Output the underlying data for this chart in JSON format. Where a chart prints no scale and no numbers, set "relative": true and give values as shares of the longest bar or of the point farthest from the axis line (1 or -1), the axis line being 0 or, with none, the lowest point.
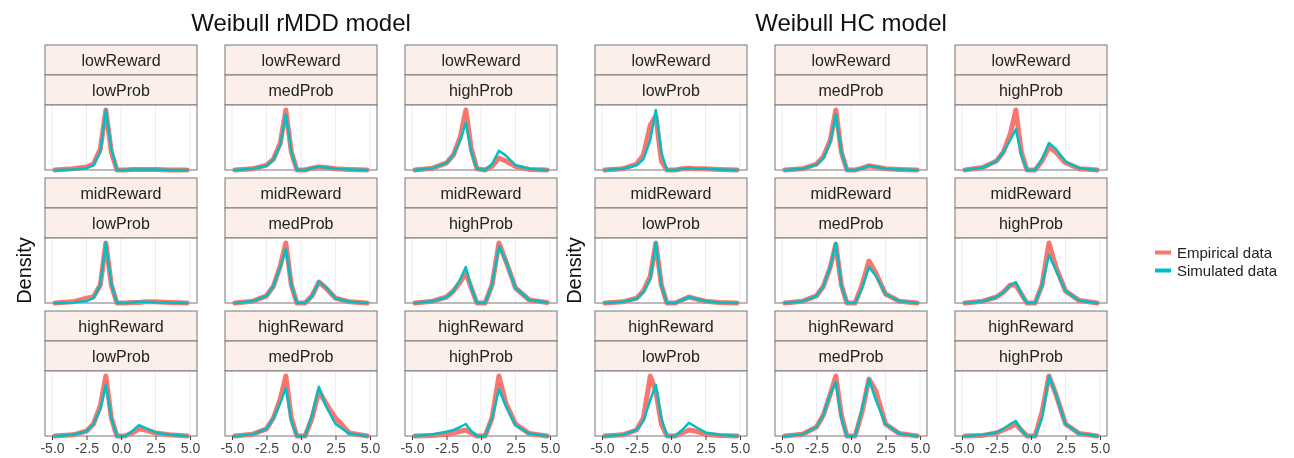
{
  "chart_data": [
    {
      "type": "line",
      "relative": true,
      "title": "lowReward",
      "subtitle": "lowProb",
      "x": [
        -4.8,
        -3.5,
        -2.5,
        -2,
        -1.5,
        -1.1,
        -0.7,
        -0.3,
        0.3,
        0.8,
        1.3,
        1.8,
        2.5,
        3.5,
        4.8
      ],
      "xlim": [
        -5,
        5
      ],
      "xticks": [
        -5,
        -2.5,
        0,
        2.5,
        5
      ],
      "tick_labels": false,
      "grid": true,
      "series": [
        {
          "color": "#f8766d",
          "values": [
            0,
            0.02,
            0.05,
            0.1,
            0.35,
            1,
            0.3,
            0,
            0,
            0.01,
            0.01,
            0.01,
            0.01,
            0,
            0
          ]
        },
        {
          "color": "#00bfc4",
          "values": [
            0,
            0.01,
            0.03,
            0.08,
            0.3,
            1,
            0.35,
            0,
            0,
            0.01,
            0.01,
            0.01,
            0.01,
            0,
            0
          ]
        }
      ]
    },
    {
      "type": "line",
      "relative": true,
      "title": "lowReward",
      "subtitle": "medProb",
      "annotations": [
        "Weibull rMDD model"
      ],
      "x": [
        -4.8,
        -3.5,
        -2.5,
        -2,
        -1.5,
        -1.1,
        -0.7,
        -0.3,
        0.3,
        0.8,
        1.3,
        1.8,
        2.5,
        3.5,
        4.8
      ],
      "xlim": [
        -5,
        5
      ],
      "xticks": [
        -5,
        -2.5,
        0,
        2.5,
        5
      ],
      "tick_labels": false,
      "grid": true,
      "series": [
        {
          "color": "#f8766d",
          "values": [
            0,
            0.02,
            0.08,
            0.18,
            0.45,
            1,
            0.3,
            0,
            0,
            0.03,
            0.05,
            0.04,
            0.02,
            0.01,
            0
          ]
        },
        {
          "color": "#00bfc4",
          "values": [
            0,
            0.02,
            0.07,
            0.17,
            0.42,
            0.93,
            0.3,
            0,
            0,
            0.03,
            0.06,
            0.04,
            0.02,
            0.01,
            0
          ]
        }
      ]
    },
    {
      "type": "line",
      "relative": true,
      "title": "lowReward",
      "subtitle": "highProb",
      "x": [
        -4.8,
        -3.5,
        -2.5,
        -2,
        -1.5,
        -1.1,
        -0.7,
        -0.3,
        0.3,
        0.8,
        1.3,
        1.8,
        2.5,
        3.5,
        4.8
      ],
      "xlim": [
        -5,
        5
      ],
      "xticks": [
        -5,
        -2.5,
        0,
        2.5,
        5
      ],
      "tick_labels": false,
      "grid": true,
      "series": [
        {
          "color": "#f8766d",
          "values": [
            0,
            0.03,
            0.12,
            0.25,
            0.55,
            1,
            0.35,
            0.02,
            0,
            0.06,
            0.2,
            0.15,
            0.06,
            0.01,
            0
          ]
        },
        {
          "color": "#00bfc4",
          "values": [
            0,
            0.03,
            0.12,
            0.25,
            0.5,
            0.78,
            0.3,
            0.02,
            0,
            0.1,
            0.32,
            0.24,
            0.08,
            0.02,
            0
          ]
        }
      ]
    },
    {
      "type": "line",
      "relative": true,
      "title": "midReward",
      "subtitle": "lowProb",
      "ylabel": "Density",
      "x": [
        -4.8,
        -3.5,
        -2.5,
        -2,
        -1.5,
        -1.1,
        -0.7,
        -0.3,
        0.3,
        0.8,
        1.3,
        1.8,
        2.5,
        3.5,
        4.8
      ],
      "xlim": [
        -5,
        5
      ],
      "xticks": [
        -5,
        -2.5,
        0,
        2.5,
        5
      ],
      "tick_labels": false,
      "grid": true,
      "series": [
        {
          "color": "#f8766d",
          "values": [
            0,
            0.02,
            0.08,
            0.1,
            0.3,
            1,
            0.3,
            0,
            0,
            0.01,
            0.01,
            0.02,
            0.02,
            0.01,
            0
          ]
        },
        {
          "color": "#00bfc4",
          "values": [
            0,
            0.01,
            0.03,
            0.08,
            0.3,
            1,
            0.32,
            0,
            0,
            0.01,
            0.02,
            0.02,
            0.01,
            0.01,
            0
          ]
        }
      ]
    },
    {
      "type": "line",
      "relative": true,
      "title": "midReward",
      "subtitle": "medProb",
      "x": [
        -4.8,
        -3.5,
        -2.5,
        -2,
        -1.5,
        -1.1,
        -0.7,
        -0.3,
        0.3,
        0.8,
        1.3,
        1.8,
        2.5,
        3.5,
        4.8
      ],
      "xlim": [
        -5,
        5
      ],
      "xticks": [
        -5,
        -2.5,
        0,
        2.5,
        5
      ],
      "tick_labels": false,
      "grid": true,
      "series": [
        {
          "color": "#f8766d",
          "values": [
            0,
            0.03,
            0.12,
            0.28,
            0.62,
            1,
            0.3,
            0,
            0,
            0.12,
            0.35,
            0.25,
            0.08,
            0.02,
            0
          ]
        },
        {
          "color": "#00bfc4",
          "values": [
            0,
            0.03,
            0.12,
            0.28,
            0.6,
            0.9,
            0.3,
            0,
            0,
            0.12,
            0.36,
            0.26,
            0.08,
            0.02,
            0
          ]
        }
      ]
    },
    {
      "type": "line",
      "relative": true,
      "title": "midReward",
      "subtitle": "highProb",
      "x": [
        -4.8,
        -3.5,
        -2.5,
        -2,
        -1.5,
        -1.1,
        -0.7,
        -0.3,
        0.3,
        0.8,
        1.3,
        1.8,
        2.5,
        3.5,
        4.8
      ],
      "xlim": [
        -5,
        5
      ],
      "xticks": [
        -5,
        -2.5,
        0,
        2.5,
        5
      ],
      "tick_labels": false,
      "grid": true,
      "series": [
        {
          "color": "#f8766d",
          "values": [
            0,
            0.03,
            0.1,
            0.2,
            0.35,
            0.5,
            0.25,
            0,
            0,
            0.3,
            1,
            0.7,
            0.25,
            0.05,
            0.01
          ]
        },
        {
          "color": "#00bfc4",
          "values": [
            0,
            0.03,
            0.1,
            0.2,
            0.4,
            0.6,
            0.25,
            0,
            0,
            0.3,
            0.95,
            0.7,
            0.25,
            0.05,
            0.01
          ]
        }
      ]
    },
    {
      "type": "line",
      "relative": true,
      "title": "highReward",
      "subtitle": "lowProb",
      "x": [
        -4.8,
        -3.5,
        -2.5,
        -2,
        -1.5,
        -1.1,
        -0.7,
        -0.3,
        0.3,
        0.8,
        1.3,
        1.8,
        2.5,
        3.5,
        4.8
      ],
      "xlim": [
        -5,
        5
      ],
      "xticks": [
        {
          "value": -5,
          "label": "-5.0"
        },
        {
          "value": -2.5,
          "label": "-2.5"
        },
        {
          "value": 0,
          "label": "0.0"
        },
        {
          "value": 2.5,
          "label": "2.5"
        },
        {
          "value": 5,
          "label": "5.0"
        }
      ],
      "tick_labels": "x",
      "grid": true,
      "series": [
        {
          "color": "#f8766d",
          "values": [
            0,
            0.02,
            0.08,
            0.2,
            0.5,
            1,
            0.3,
            0,
            0,
            0.05,
            0.12,
            0.1,
            0.05,
            0.02,
            0
          ]
        },
        {
          "color": "#00bfc4",
          "values": [
            0,
            0.02,
            0.08,
            0.2,
            0.45,
            0.85,
            0.3,
            0,
            0,
            0.08,
            0.18,
            0.13,
            0.06,
            0.02,
            0
          ]
        }
      ]
    },
    {
      "type": "line",
      "relative": true,
      "title": "highReward",
      "subtitle": "medProb",
      "x": [
        -4.8,
        -3.5,
        -2.5,
        -2,
        -1.5,
        -1.1,
        -0.7,
        -0.3,
        0.3,
        0.8,
        1.3,
        1.8,
        2.5,
        3.5,
        4.8
      ],
      "xlim": [
        -5,
        5
      ],
      "xticks": [
        {
          "value": -5,
          "label": "-5.0"
        },
        {
          "value": -2.5,
          "label": "-2.5"
        },
        {
          "value": 0,
          "label": "0.0"
        },
        {
          "value": 2.5,
          "label": "2.5"
        },
        {
          "value": 5,
          "label": "5.0"
        }
      ],
      "tick_labels": "x",
      "grid": true,
      "series": [
        {
          "color": "#f8766d",
          "values": [
            0,
            0.03,
            0.12,
            0.3,
            0.62,
            1,
            0.3,
            0,
            0,
            0.3,
            0.75,
            0.55,
            0.3,
            0.05,
            0
          ]
        },
        {
          "color": "#00bfc4",
          "values": [
            0,
            0.03,
            0.12,
            0.3,
            0.55,
            0.8,
            0.25,
            0,
            0,
            0.35,
            0.82,
            0.5,
            0.2,
            0.04,
            0
          ]
        }
      ]
    },
    {
      "type": "line",
      "relative": true,
      "title": "highReward",
      "subtitle": "highProb",
      "x": [
        -4.8,
        -3.5,
        -2.5,
        -2,
        -1.5,
        -1.1,
        -0.7,
        -0.3,
        0.3,
        0.8,
        1.3,
        1.8,
        2.5,
        3.5,
        4.8
      ],
      "xlim": [
        -5,
        5
      ],
      "xticks": [
        {
          "value": -5,
          "label": "-5.0"
        },
        {
          "value": -2.5,
          "label": "-2.5"
        },
        {
          "value": 0,
          "label": "0.0"
        },
        {
          "value": 2.5,
          "label": "2.5"
        },
        {
          "value": 5,
          "label": "5.0"
        }
      ],
      "tick_labels": "x",
      "grid": true,
      "series": [
        {
          "color": "#f8766d",
          "values": [
            0,
            0.01,
            0.03,
            0.05,
            0.08,
            0.1,
            0.05,
            0,
            0,
            0.3,
            1,
            0.55,
            0.2,
            0.04,
            0
          ]
        },
        {
          "color": "#00bfc4",
          "values": [
            0,
            0.03,
            0.07,
            0.1,
            0.15,
            0.2,
            0.08,
            0,
            0,
            0.3,
            0.78,
            0.5,
            0.18,
            0.04,
            0
          ]
        }
      ]
    },
    {
      "type": "line",
      "relative": true,
      "title": "lowReward",
      "subtitle": "lowProb",
      "x": [
        -4.8,
        -3.5,
        -2.5,
        -2,
        -1.5,
        -1.1,
        -0.7,
        -0.3,
        0.3,
        0.8,
        1.3,
        1.8,
        2.5,
        3.5,
        4.8
      ],
      "xlim": [
        -5,
        5
      ],
      "xticks": [
        -5,
        -2.5,
        0,
        2.5,
        5
      ],
      "tick_labels": false,
      "grid": true,
      "series": [
        {
          "color": "#f8766d",
          "values": [
            0,
            0.02,
            0.1,
            0.25,
            0.75,
            0.9,
            0.15,
            0,
            0,
            0.02,
            0.03,
            0.02,
            0.02,
            0.01,
            0
          ]
        },
        {
          "color": "#00bfc4",
          "values": [
            0,
            0.02,
            0.08,
            0.18,
            0.5,
            1,
            0.3,
            0,
            0,
            0.02,
            0.03,
            0.02,
            0.02,
            0.01,
            0
          ]
        }
      ]
    },
    {
      "type": "line",
      "relative": true,
      "title": "lowReward",
      "subtitle": "medProb",
      "annotations": [
        "Weibull HC model"
      ],
      "x": [
        -4.8,
        -3.5,
        -2.5,
        -2,
        -1.5,
        -1.1,
        -0.7,
        -0.3,
        0.3,
        0.8,
        1.3,
        1.8,
        2.5,
        3.5,
        4.8
      ],
      "xlim": [
        -5,
        5
      ],
      "xticks": [
        -5,
        -2.5,
        0,
        2.5,
        5
      ],
      "tick_labels": false,
      "grid": true,
      "series": [
        {
          "color": "#f8766d",
          "values": [
            0,
            0.02,
            0.1,
            0.22,
            0.5,
            1,
            0.3,
            0,
            0,
            0.03,
            0.07,
            0.05,
            0.02,
            0.01,
            0
          ]
        },
        {
          "color": "#00bfc4",
          "values": [
            0,
            0.02,
            0.09,
            0.2,
            0.47,
            0.93,
            0.3,
            0,
            0,
            0.03,
            0.07,
            0.05,
            0.02,
            0.01,
            0
          ]
        }
      ]
    },
    {
      "type": "line",
      "relative": true,
      "title": "lowReward",
      "subtitle": "highProb",
      "x": [
        -4.8,
        -3.5,
        -2.5,
        -2,
        -1.5,
        -1.1,
        -0.7,
        -0.3,
        0.3,
        0.8,
        1.3,
        1.8,
        2.5,
        3.5,
        4.8
      ],
      "xlim": [
        -5,
        5
      ],
      "xticks": [
        -5,
        -2.5,
        0,
        2.5,
        5
      ],
      "tick_labels": false,
      "grid": true,
      "series": [
        {
          "color": "#f8766d",
          "values": [
            0,
            0.04,
            0.15,
            0.3,
            0.6,
            1,
            0.3,
            0,
            0,
            0.15,
            0.38,
            0.3,
            0.12,
            0.02,
            0
          ]
        },
        {
          "color": "#00bfc4",
          "values": [
            0,
            0.04,
            0.15,
            0.3,
            0.5,
            0.68,
            0.25,
            0,
            0,
            0.18,
            0.45,
            0.35,
            0.14,
            0.03,
            0
          ]
        }
      ]
    },
    {
      "type": "line",
      "relative": true,
      "title": "midReward",
      "subtitle": "lowProb",
      "ylabel": "Density",
      "x": [
        -4.8,
        -3.5,
        -2.5,
        -2,
        -1.5,
        -1.1,
        -0.7,
        -0.3,
        0.3,
        0.8,
        1.3,
        1.8,
        2.5,
        3.5,
        4.8
      ],
      "xlim": [
        -5,
        5
      ],
      "xticks": [
        -5,
        -2.5,
        0,
        2.5,
        5
      ],
      "tick_labels": false,
      "grid": true,
      "series": [
        {
          "color": "#f8766d",
          "values": [
            0,
            0.02,
            0.08,
            0.2,
            0.45,
            1,
            0.3,
            0,
            0,
            0.05,
            0.1,
            0.07,
            0.03,
            0.01,
            0
          ]
        },
        {
          "color": "#00bfc4",
          "values": [
            0,
            0.02,
            0.07,
            0.18,
            0.4,
            1,
            0.3,
            0,
            0,
            0.05,
            0.1,
            0.07,
            0.03,
            0.01,
            0
          ]
        }
      ]
    },
    {
      "type": "line",
      "relative": true,
      "title": "midReward",
      "subtitle": "medProb",
      "x": [
        -4.8,
        -3.5,
        -2.5,
        -2,
        -1.5,
        -1.1,
        -0.7,
        -0.3,
        0.3,
        0.8,
        1.3,
        1.8,
        2.5,
        3.5,
        4.8
      ],
      "xlim": [
        -5,
        5
      ],
      "xticks": [
        -5,
        -2.5,
        0,
        2.5,
        5
      ],
      "tick_labels": false,
      "grid": true,
      "series": [
        {
          "color": "#f8766d",
          "values": [
            0,
            0.03,
            0.12,
            0.28,
            0.6,
            0.98,
            0.3,
            0,
            0,
            0.3,
            0.7,
            0.5,
            0.15,
            0.03,
            0
          ]
        },
        {
          "color": "#00bfc4",
          "values": [
            0,
            0.03,
            0.12,
            0.28,
            0.6,
            1,
            0.3,
            0,
            0,
            0.25,
            0.6,
            0.45,
            0.15,
            0.03,
            0
          ]
        }
      ]
    },
    {
      "type": "line",
      "relative": true,
      "title": "midReward",
      "subtitle": "highProb",
      "legend": "right",
      "x": [
        -4.8,
        -3.5,
        -2.5,
        -2,
        -1.5,
        -1.1,
        -0.7,
        -0.3,
        0.3,
        0.8,
        1.3,
        1.8,
        2.5,
        3.5,
        4.8
      ],
      "xlim": [
        -5,
        5
      ],
      "xticks": [
        -5,
        -2.5,
        0,
        2.5,
        5
      ],
      "tick_labels": false,
      "grid": true,
      "series": [
        {
          "name": "Empirical data",
          "color": "#f8766d",
          "values": [
            0,
            0.03,
            0.1,
            0.18,
            0.3,
            0.3,
            0.15,
            0,
            0,
            0.3,
            1,
            0.6,
            0.2,
            0.04,
            0
          ]
        },
        {
          "name": "Simulated data",
          "color": "#00bfc4",
          "values": [
            0,
            0.03,
            0.1,
            0.18,
            0.3,
            0.35,
            0.15,
            0,
            0,
            0.3,
            0.8,
            0.55,
            0.2,
            0.04,
            0
          ]
        }
      ]
    },
    {
      "type": "line",
      "relative": true,
      "title": "highReward",
      "subtitle": "lowProb",
      "x": [
        -4.8,
        -3.5,
        -2.5,
        -2,
        -1.5,
        -1.1,
        -0.7,
        -0.3,
        0.3,
        0.8,
        1.3,
        1.8,
        2.5,
        3.5,
        4.8
      ],
      "xlim": [
        -5,
        5
      ],
      "xticks": [
        {
          "value": -5,
          "label": "-5.0"
        },
        {
          "value": -2.5,
          "label": "-2.5"
        },
        {
          "value": 0,
          "label": "0.0"
        },
        {
          "value": 2.5,
          "label": "2.5"
        },
        {
          "value": 5,
          "label": "5.0"
        }
      ],
      "tick_labels": "x",
      "grid": true,
      "series": [
        {
          "color": "#f8766d",
          "values": [
            0,
            0.02,
            0.1,
            0.3,
            1,
            0.75,
            0.2,
            0,
            0,
            0.05,
            0.1,
            0.08,
            0.03,
            0.01,
            0
          ]
        },
        {
          "color": "#00bfc4",
          "values": [
            0,
            0.02,
            0.1,
            0.25,
            0.6,
            0.85,
            0.3,
            0,
            0,
            0.1,
            0.22,
            0.15,
            0.06,
            0.02,
            0
          ]
        }
      ]
    },
    {
      "type": "line",
      "relative": true,
      "title": "highReward",
      "subtitle": "medProb",
      "x": [
        -4.8,
        -3.5,
        -2.5,
        -2,
        -1.5,
        -1.1,
        -0.7,
        -0.3,
        0.3,
        0.8,
        1.3,
        1.8,
        2.5,
        3.5,
        4.8
      ],
      "xlim": [
        -5,
        5
      ],
      "xticks": [
        {
          "value": -5,
          "label": "-5.0"
        },
        {
          "value": -2.5,
          "label": "-2.5"
        },
        {
          "value": 0,
          "label": "0.0"
        },
        {
          "value": 2.5,
          "label": "2.5"
        },
        {
          "value": 5,
          "label": "5.0"
        }
      ],
      "tick_labels": "x",
      "grid": true,
      "series": [
        {
          "color": "#f8766d",
          "values": [
            0,
            0.03,
            0.15,
            0.35,
            0.7,
            1,
            0.35,
            0,
            0,
            0.4,
            0.95,
            0.75,
            0.2,
            0.04,
            0
          ]
        },
        {
          "color": "#00bfc4",
          "values": [
            0,
            0.03,
            0.15,
            0.35,
            0.7,
            0.9,
            0.3,
            0,
            0,
            0.45,
            0.95,
            0.6,
            0.2,
            0.04,
            0
          ]
        }
      ]
    },
    {
      "type": "line",
      "relative": true,
      "title": "highReward",
      "subtitle": "highProb",
      "x": [
        -4.8,
        -3.5,
        -2.5,
        -2,
        -1.5,
        -1.1,
        -0.7,
        -0.3,
        0.3,
        0.8,
        1.3,
        1.8,
        2.5,
        3.5,
        4.8
      ],
      "xlim": [
        -5,
        5
      ],
      "xticks": [
        {
          "value": -5,
          "label": "-5.0"
        },
        {
          "value": -2.5,
          "label": "-2.5"
        },
        {
          "value": 0,
          "label": "0.0"
        },
        {
          "value": 2.5,
          "label": "2.5"
        },
        {
          "value": 5,
          "label": "5.0"
        }
      ],
      "tick_labels": "x",
      "grid": true,
      "series": [
        {
          "color": "#f8766d",
          "values": [
            0,
            0.01,
            0.05,
            0.1,
            0.15,
            0.2,
            0.1,
            0,
            0,
            0.4,
            1,
            0.7,
            0.2,
            0.04,
            0
          ]
        },
        {
          "color": "#00bfc4",
          "values": [
            0,
            0.02,
            0.06,
            0.12,
            0.2,
            0.25,
            0.1,
            0,
            0,
            0.3,
            1,
            0.7,
            0.2,
            0.04,
            0
          ]
        }
      ]
    }
  ]
}
